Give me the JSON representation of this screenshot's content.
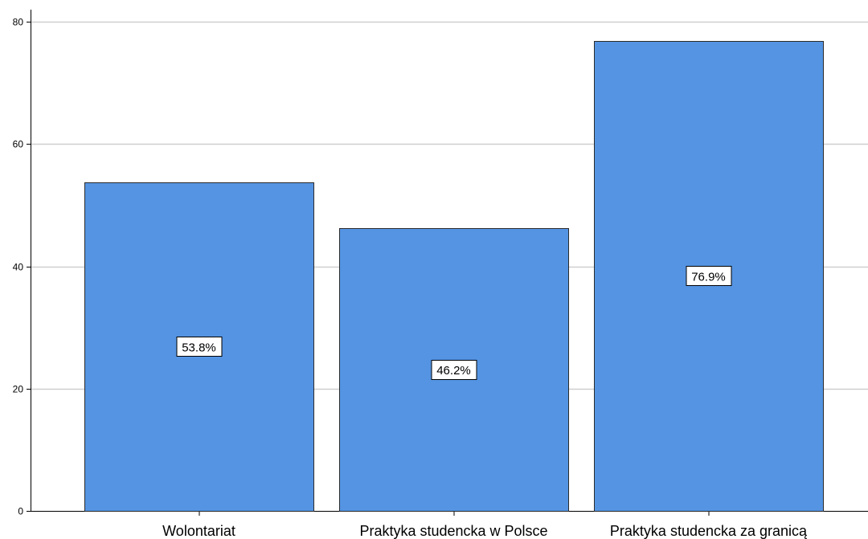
{
  "chart_data": {
    "type": "bar",
    "categories": [
      "Wolontariat",
      "Praktyka studencka w Polsce",
      "Praktyka studencka za granicą"
    ],
    "values": [
      53.8,
      46.2,
      76.9
    ],
    "data_labels": [
      "53.8%",
      "46.2%",
      "76.9%"
    ],
    "title": "",
    "xlabel": "",
    "ylabel": "",
    "ylim": [
      0,
      82
    ],
    "yticks": [
      0,
      20,
      40,
      60,
      80
    ],
    "ytick_labels": [
      "0",
      "20",
      "40",
      "60",
      "80"
    ],
    "grid": true,
    "bar_color": "#5594e2"
  }
}
